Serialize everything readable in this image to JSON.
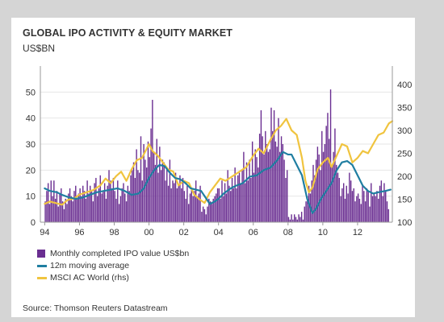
{
  "colors": {
    "page_bg": "#d5d5d5",
    "card_bg": "#ffffff",
    "bars": "#6a2e91",
    "moving_average": "#1f7ea1",
    "msci": "#f0c43f",
    "text": "#333333",
    "gridline": "#e6e6e6",
    "axis": "#999999"
  },
  "chart_data": {
    "type": "bar",
    "title": "GLOBAL IPO ACTIVITY & EQUITY MARKET",
    "subtitle": "US$BN",
    "xlabel": "",
    "ylabel": "",
    "grid": true,
    "legend_position": "bottom-left",
    "x_range": [
      1993.75,
      2014.0
    ],
    "ylim": [
      0,
      60
    ],
    "y2lim": [
      100,
      440
    ],
    "y_ticks": [
      0,
      10,
      20,
      30,
      40,
      50
    ],
    "y2_ticks": [
      100,
      150,
      200,
      250,
      300,
      350,
      400
    ],
    "x_ticks": [
      {
        "value": 1994,
        "label": "94"
      },
      {
        "value": 1996,
        "label": "96"
      },
      {
        "value": 1998,
        "label": "98"
      },
      {
        "value": 2000,
        "label": "00"
      },
      {
        "value": 2002,
        "label": "02"
      },
      {
        "value": 2004,
        "label": "04"
      },
      {
        "value": 2006,
        "label": "06"
      },
      {
        "value": 2008,
        "label": "08"
      },
      {
        "value": 2010,
        "label": "10"
      },
      {
        "value": 2012,
        "label": "12"
      }
    ],
    "series": [
      {
        "name": "Monthly completed IPO value US$bn",
        "kind": "bar",
        "axis": "left",
        "frequency": "monthly",
        "start": 1994.0,
        "values": [
          8,
          12,
          15,
          7,
          16,
          10,
          16,
          9,
          12,
          6,
          11,
          13,
          8,
          5,
          9,
          7,
          11,
          13,
          10,
          8,
          12,
          14,
          9,
          11,
          13,
          10,
          14,
          12,
          9,
          16,
          11,
          14,
          12,
          8,
          15,
          17,
          10,
          13,
          18,
          11,
          12,
          15,
          9,
          14,
          20,
          16,
          13,
          17,
          12,
          9,
          16,
          7,
          10,
          13,
          15,
          11,
          8,
          14,
          12,
          18,
          20,
          23,
          17,
          28,
          20,
          19,
          33,
          16,
          30,
          24,
          21,
          31,
          25,
          36,
          47,
          27,
          22,
          32,
          19,
          29,
          20,
          24,
          23,
          16,
          21,
          14,
          24,
          13,
          16,
          15,
          19,
          13,
          14,
          18,
          13,
          17,
          12,
          9,
          14,
          7,
          11,
          13,
          10,
          12,
          16,
          10,
          11,
          14,
          4,
          6,
          5,
          3,
          6,
          9,
          8,
          7,
          9,
          10,
          11,
          13,
          13,
          9,
          16,
          10,
          15,
          11,
          20,
          14,
          12,
          17,
          13,
          21,
          13,
          18,
          19,
          15,
          20,
          27,
          15,
          23,
          16,
          24,
          17,
          31,
          19,
          28,
          25,
          21,
          34,
          43,
          33,
          26,
          35,
          30,
          27,
          28,
          44,
          35,
          43,
          31,
          29,
          40,
          27,
          33,
          30,
          24,
          17,
          20,
          2,
          1,
          3,
          1,
          3,
          2,
          1,
          3,
          2,
          4,
          1,
          6,
          8,
          10,
          14,
          11,
          16,
          22,
          18,
          24,
          29,
          26,
          20,
          35,
          27,
          30,
          37,
          42,
          32,
          51,
          22,
          27,
          36,
          22,
          19,
          17,
          10,
          13,
          15,
          9,
          14,
          11,
          19,
          16,
          12,
          13,
          8,
          10,
          11,
          9,
          7,
          14,
          12,
          8,
          13,
          12,
          6,
          15,
          10,
          11,
          10,
          12,
          9,
          14,
          16,
          10,
          15,
          12,
          8,
          5
        ]
      },
      {
        "name": "12m moving average",
        "kind": "line",
        "axis": "left",
        "points": [
          [
            1994.0,
            13
          ],
          [
            1994.3,
            12
          ],
          [
            1994.7,
            11.5
          ],
          [
            1995.0,
            10.5
          ],
          [
            1995.4,
            9.5
          ],
          [
            1995.8,
            9
          ],
          [
            1996.2,
            9.5
          ],
          [
            1996.6,
            10.5
          ],
          [
            1997.0,
            11.5
          ],
          [
            1997.4,
            12
          ],
          [
            1997.8,
            12.5
          ],
          [
            1998.2,
            13
          ],
          [
            1998.6,
            12
          ],
          [
            1999.0,
            10.5
          ],
          [
            1999.4,
            11
          ],
          [
            1999.7,
            13
          ],
          [
            2000.0,
            17
          ],
          [
            2000.3,
            20
          ],
          [
            2000.6,
            22
          ],
          [
            2000.9,
            21.5
          ],
          [
            2001.2,
            19
          ],
          [
            2001.5,
            17
          ],
          [
            2001.8,
            16.5
          ],
          [
            2002.1,
            15
          ],
          [
            2002.4,
            13
          ],
          [
            2002.7,
            12.5
          ],
          [
            2003.0,
            12
          ],
          [
            2003.3,
            9
          ],
          [
            2003.5,
            7
          ],
          [
            2003.8,
            8
          ],
          [
            2004.0,
            9
          ],
          [
            2004.3,
            11
          ],
          [
            2004.7,
            13
          ],
          [
            2005.0,
            14
          ],
          [
            2005.4,
            15
          ],
          [
            2005.8,
            17.5
          ],
          [
            2006.2,
            18
          ],
          [
            2006.6,
            20
          ],
          [
            2007.0,
            21
          ],
          [
            2007.4,
            24
          ],
          [
            2007.7,
            27
          ],
          [
            2008.0,
            26
          ],
          [
            2008.2,
            26
          ],
          [
            2008.5,
            22
          ],
          [
            2008.8,
            18
          ],
          [
            2009.1,
            9
          ],
          [
            2009.4,
            3.5
          ],
          [
            2009.6,
            5
          ],
          [
            2009.9,
            9
          ],
          [
            2010.2,
            12
          ],
          [
            2010.5,
            15
          ],
          [
            2010.8,
            20
          ],
          [
            2011.1,
            23
          ],
          [
            2011.4,
            23.5
          ],
          [
            2011.7,
            22
          ],
          [
            2012.0,
            18
          ],
          [
            2012.3,
            14
          ],
          [
            2012.6,
            12
          ],
          [
            2012.9,
            11
          ],
          [
            2013.2,
            11.5
          ],
          [
            2013.6,
            12
          ],
          [
            2013.9,
            12.5
          ]
        ]
      },
      {
        "name": "MSCI AC World (rhs)",
        "kind": "line",
        "axis": "right",
        "points": [
          [
            1994.0,
            140
          ],
          [
            1994.3,
            145
          ],
          [
            1994.6,
            142
          ],
          [
            1995.0,
            138
          ],
          [
            1995.3,
            148
          ],
          [
            1995.7,
            152
          ],
          [
            1996.0,
            160
          ],
          [
            1996.4,
            165
          ],
          [
            1996.8,
            170
          ],
          [
            1997.2,
            180
          ],
          [
            1997.5,
            195
          ],
          [
            1997.8,
            185
          ],
          [
            1998.1,
            200
          ],
          [
            1998.4,
            210
          ],
          [
            1998.7,
            190
          ],
          [
            1999.0,
            215
          ],
          [
            1999.3,
            235
          ],
          [
            1999.6,
            240
          ],
          [
            2000.0,
            270
          ],
          [
            2000.2,
            255
          ],
          [
            2000.5,
            245
          ],
          [
            2000.8,
            230
          ],
          [
            2001.1,
            215
          ],
          [
            2001.4,
            210
          ],
          [
            2001.7,
            180
          ],
          [
            2002.0,
            190
          ],
          [
            2002.3,
            185
          ],
          [
            2002.6,
            160
          ],
          [
            2002.9,
            150
          ],
          [
            2003.2,
            142
          ],
          [
            2003.5,
            165
          ],
          [
            2003.8,
            180
          ],
          [
            2004.1,
            195
          ],
          [
            2004.4,
            190
          ],
          [
            2004.8,
            200
          ],
          [
            2005.2,
            210
          ],
          [
            2005.6,
            220
          ],
          [
            2006.0,
            245
          ],
          [
            2006.3,
            260
          ],
          [
            2006.6,
            250
          ],
          [
            2007.0,
            280
          ],
          [
            2007.3,
            300
          ],
          [
            2007.6,
            310
          ],
          [
            2007.9,
            325
          ],
          [
            2008.2,
            300
          ],
          [
            2008.5,
            290
          ],
          [
            2008.8,
            240
          ],
          [
            2009.0,
            190
          ],
          [
            2009.2,
            165
          ],
          [
            2009.4,
            175
          ],
          [
            2009.7,
            215
          ],
          [
            2010.0,
            230
          ],
          [
            2010.3,
            240
          ],
          [
            2010.5,
            220
          ],
          [
            2010.8,
            245
          ],
          [
            2011.1,
            270
          ],
          [
            2011.4,
            265
          ],
          [
            2011.7,
            230
          ],
          [
            2012.0,
            240
          ],
          [
            2012.3,
            255
          ],
          [
            2012.6,
            250
          ],
          [
            2012.9,
            270
          ],
          [
            2013.2,
            290
          ],
          [
            2013.5,
            295
          ],
          [
            2013.8,
            315
          ],
          [
            2014.0,
            320
          ]
        ]
      }
    ]
  },
  "legend": {
    "items": [
      {
        "label": "Monthly completed IPO value US$bn",
        "type": "box",
        "color": "#6a2e91"
      },
      {
        "label": "12m moving average",
        "type": "line",
        "color": "#1f7ea1"
      },
      {
        "label": "MSCI AC World (rhs)",
        "type": "line",
        "color": "#f0c43f"
      }
    ]
  },
  "source": "Source: Thomson Reuters Datastream"
}
